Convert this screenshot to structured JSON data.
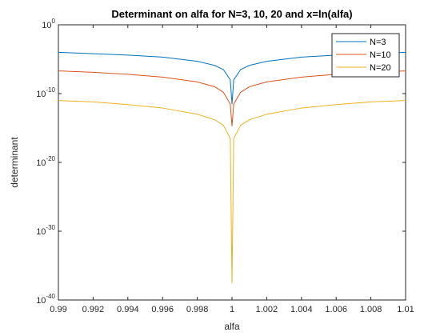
{
  "chart_data": {
    "type": "line",
    "title": "Determinant on alfa for N=3, 10, 20 and x=ln(alfa)",
    "xlabel": "alfa",
    "ylabel": "determinant",
    "xlim": [
      0.99,
      1.01
    ],
    "ylim_log10": [
      -40,
      0
    ],
    "y_scale": "log",
    "grid": false,
    "legend_position": "top-right",
    "x_ticks": [
      "0.99",
      "0.992",
      "0.994",
      "0.996",
      "0.998",
      "1",
      "1.002",
      "1.004",
      "1.006",
      "1.008",
      "1.01"
    ],
    "y_tick_base": "10",
    "y_tick_exponents": [
      "0",
      "-10",
      "-20",
      "-30",
      "-40"
    ],
    "series": [
      {
        "name": "N=3",
        "color": "#0072BD",
        "x": [
          0.99,
          0.992,
          0.994,
          0.996,
          0.998,
          0.999,
          0.9995,
          0.9999,
          1.0,
          1.0001,
          1.0005,
          1.001,
          1.002,
          1.004,
          1.006,
          1.008,
          1.01
        ],
        "log10_y": [
          -4.0,
          -4.2,
          -4.4,
          -4.7,
          -5.3,
          -5.9,
          -6.5,
          -8.0,
          -11.5,
          -8.0,
          -6.5,
          -5.9,
          -5.3,
          -4.7,
          -4.4,
          -4.2,
          -4.0
        ]
      },
      {
        "name": "N=10",
        "color": "#D95319",
        "x": [
          0.99,
          0.992,
          0.994,
          0.996,
          0.998,
          0.999,
          0.9995,
          0.9999,
          1.0,
          1.0001,
          1.0005,
          1.001,
          1.002,
          1.004,
          1.006,
          1.008,
          1.01
        ],
        "log10_y": [
          -6.7,
          -6.9,
          -7.2,
          -7.6,
          -8.3,
          -9.0,
          -9.8,
          -11.5,
          -14.7,
          -11.5,
          -9.8,
          -9.0,
          -8.3,
          -7.6,
          -7.2,
          -6.9,
          -6.7
        ]
      },
      {
        "name": "N=20",
        "color": "#EDB120",
        "x": [
          0.99,
          0.992,
          0.994,
          0.996,
          0.998,
          0.999,
          0.9995,
          0.9999,
          1.0,
          1.0001,
          1.0005,
          1.001,
          1.002,
          1.004,
          1.006,
          1.008,
          1.01
        ],
        "log10_y": [
          -11.0,
          -11.2,
          -11.6,
          -12.1,
          -13.0,
          -13.8,
          -14.6,
          -16.5,
          -37.5,
          -16.5,
          -14.6,
          -13.8,
          -13.0,
          -12.1,
          -11.6,
          -11.2,
          -11.0
        ]
      }
    ]
  }
}
